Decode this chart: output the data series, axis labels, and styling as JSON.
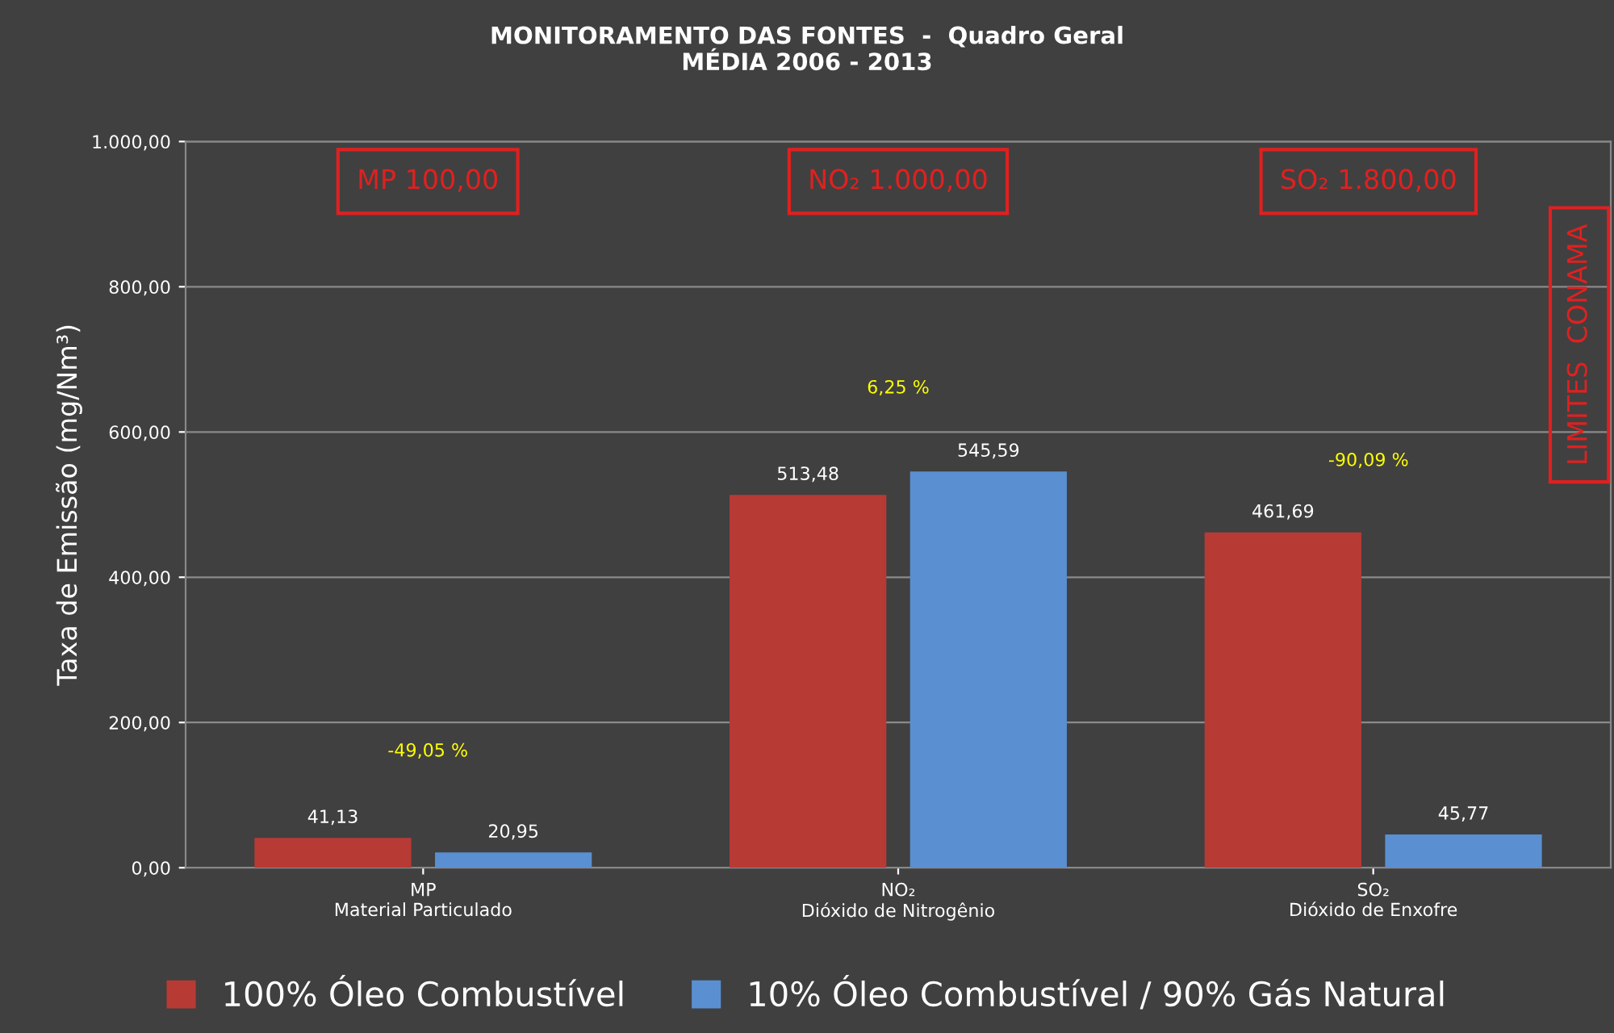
{
  "chart_data": {
    "type": "bar",
    "title": "MONITORAMENTO DAS FONTES  -  Quadro Geral\nMÉDIA 2006 - 2013",
    "ylabel": "Taxa de Emissão (mg/Nm³)",
    "categories": [
      "MP\nMaterial Particulado",
      "NO₂\nDióxido de Nitrogênio",
      "SO₂\nDióxido de Enxofre"
    ],
    "series": [
      {
        "name": "100% Óleo Combustível",
        "color": "#b83a35",
        "values": [
          41.13,
          513.48,
          461.69
        ],
        "value_labels": [
          "41,13",
          "513,48",
          "461,69"
        ]
      },
      {
        "name": "10% Óleo Combustível / 90% Gás Natural",
        "color": "#5a8fd2",
        "values": [
          20.95,
          545.59,
          45.77
        ],
        "value_labels": [
          "20,95",
          "545,59",
          "45,77"
        ]
      }
    ],
    "ylim": [
      0,
      1000
    ],
    "yticks": [
      {
        "value": 0,
        "label": "0,00"
      },
      {
        "value": 200,
        "label": "200,00"
      },
      {
        "value": 400,
        "label": "400,00"
      },
      {
        "value": 600,
        "label": "600,00"
      },
      {
        "value": 800,
        "label": "800,00"
      },
      {
        "value": 1000,
        "label": "1.000,00"
      }
    ],
    "grid": "y",
    "legend": "bottom",
    "annotations": [
      "-49,05 %",
      "6,25 %",
      "-90,09 %",
      "MP 100,00",
      "NO₂ 1.000,00",
      "SO₂ 1.800,00",
      "LIMITES  CONAMA"
    ]
  }
}
